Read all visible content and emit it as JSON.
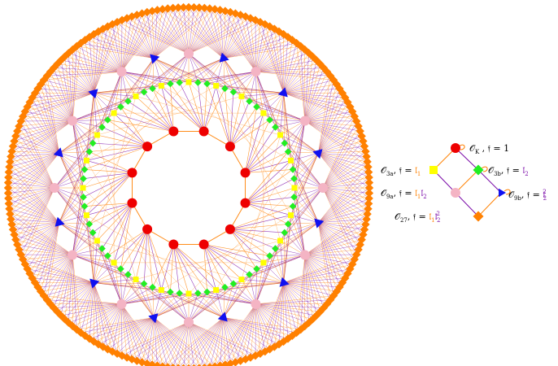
{
  "colors": {
    "orange": "#ff8000",
    "purple": "#7a0aa8",
    "red": "#ee0000",
    "yellow": "#ffff00",
    "green": "#22ee22",
    "blue": "#1010f0",
    "pink": "#f4b4c4",
    "background": "#ffffff"
  },
  "graph": {
    "inner_ring": {
      "count": 12,
      "shape": "circle",
      "color": "red"
    },
    "second_ring": {
      "count": 72,
      "shapes": [
        "diamond",
        "square"
      ],
      "colors": [
        "green",
        "yellow"
      ]
    },
    "third_ring": {
      "count": 24,
      "shapes": [
        "circle",
        "triangle"
      ],
      "colors": [
        "pink",
        "blue"
      ]
    },
    "outer_ring": {
      "count": 216,
      "shape": "diamond",
      "color": "orange"
    },
    "edge_colors": [
      "orange",
      "purple"
    ]
  },
  "legend": {
    "nodes": {
      "ok": {
        "label_main": "𝒪",
        "label_sub": "K",
        "label_rest": " , 𝔣 = 1",
        "shape": "circle",
        "color": "red"
      },
      "o3a": {
        "label_main": "𝒪",
        "label_sub": "3a",
        "label_rest": ", 𝔣 = ",
        "f": "𝔩",
        "f_sub": "1",
        "shape": "square",
        "color": "yellow"
      },
      "o3b": {
        "label_main": "𝒪",
        "label_sub": "3b",
        "label_rest": ", 𝔣 = ",
        "f": "𝔩",
        "f_sub": "2",
        "shape": "diamond",
        "color": "green"
      },
      "o9a": {
        "label_main": "𝒪",
        "label_sub": "9a",
        "label_rest": ", 𝔣 = ",
        "f": "𝔩",
        "f_sub": "1",
        "f2": "𝔩",
        "f2_sub": "2",
        "shape": "circle",
        "color": "pink"
      },
      "o9b": {
        "label_main": "𝒪",
        "label_sub": "9b",
        "label_rest": ", 𝔣 = ",
        "f": "𝔩",
        "f_sub": "2",
        "f_sup": "2",
        "shape": "triangle",
        "color": "blue"
      },
      "o27": {
        "label_main": "𝒪",
        "label_sub": "27",
        "label_rest": ", 𝔣 = ",
        "f": "𝔩",
        "f_sub": "1",
        "f2": "𝔩",
        "f2_sub": "2",
        "f2_sup": "2",
        "shape": "diamond",
        "color": "orange"
      }
    }
  }
}
